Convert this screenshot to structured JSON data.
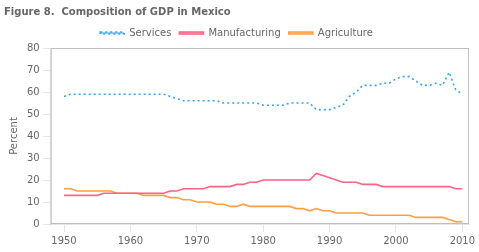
{
  "chart_data": {
    "type": "line",
    "title": "Figure 8.  Composition of GDP in Mexico",
    "ylabel": "Percent",
    "x": [
      1950,
      1951,
      1952,
      1953,
      1954,
      1955,
      1956,
      1957,
      1958,
      1959,
      1960,
      1961,
      1962,
      1963,
      1964,
      1965,
      1966,
      1967,
      1968,
      1969,
      1970,
      1971,
      1972,
      1973,
      1974,
      1975,
      1976,
      1977,
      1978,
      1979,
      1980,
      1981,
      1982,
      1983,
      1984,
      1985,
      1986,
      1987,
      1988,
      1989,
      1990,
      1991,
      1992,
      1993,
      1994,
      1995,
      1996,
      1997,
      1998,
      1999,
      2000,
      2001,
      2002,
      2003,
      2004,
      2005,
      2006,
      2007,
      2008,
      2009,
      2010
    ],
    "series": [
      {
        "name": "Services",
        "line_style": "dotted",
        "values": [
          58,
          59,
          59,
          59,
          59,
          59,
          59,
          59,
          59,
          59,
          59,
          59,
          59,
          59,
          59,
          59,
          58,
          57,
          56,
          56,
          56,
          56,
          56,
          56,
          55,
          55,
          55,
          55,
          55,
          55,
          54,
          54,
          54,
          54,
          55,
          55,
          55,
          55,
          52,
          52,
          52,
          53,
          54,
          58,
          60,
          63,
          63,
          63,
          64,
          64,
          66,
          67,
          67,
          65,
          63,
          63,
          64,
          63,
          69,
          61,
          59
        ]
      },
      {
        "name": "Manufacturing",
        "line_style": "solid",
        "values": [
          13,
          13,
          13,
          13,
          13,
          13,
          14,
          14,
          14,
          14,
          14,
          14,
          14,
          14,
          14,
          14,
          15,
          15,
          16,
          16,
          16,
          16,
          17,
          17,
          17,
          17,
          18,
          18,
          19,
          19,
          20,
          20,
          20,
          20,
          20,
          20,
          20,
          20,
          23,
          22,
          21,
          20,
          19,
          19,
          19,
          18,
          18,
          18,
          17,
          17,
          17,
          17,
          17,
          17,
          17,
          17,
          17,
          17,
          17,
          16,
          16
        ]
      },
      {
        "name": "Agriculture",
        "line_style": "solid",
        "values": [
          16,
          16,
          15,
          15,
          15,
          15,
          15,
          15,
          14,
          14,
          14,
          14,
          13,
          13,
          13,
          13,
          12,
          12,
          11,
          11,
          10,
          10,
          10,
          9,
          9,
          8,
          8,
          9,
          8,
          8,
          8,
          8,
          8,
          8,
          8,
          7,
          7,
          6,
          7,
          6,
          6,
          5,
          5,
          5,
          5,
          5,
          4,
          4,
          4,
          4,
          4,
          4,
          4,
          3,
          3,
          3,
          3,
          3,
          2,
          1,
          1
        ]
      }
    ],
    "xlim": [
      1948,
      2011
    ],
    "xticks": [
      1950,
      1960,
      1970,
      1980,
      1990,
      2000,
      2010
    ],
    "ylim": [
      0,
      80
    ],
    "yticks": [
      0,
      10,
      20,
      30,
      40,
      50,
      60,
      70,
      80
    ],
    "grid": false,
    "legend": "top"
  }
}
